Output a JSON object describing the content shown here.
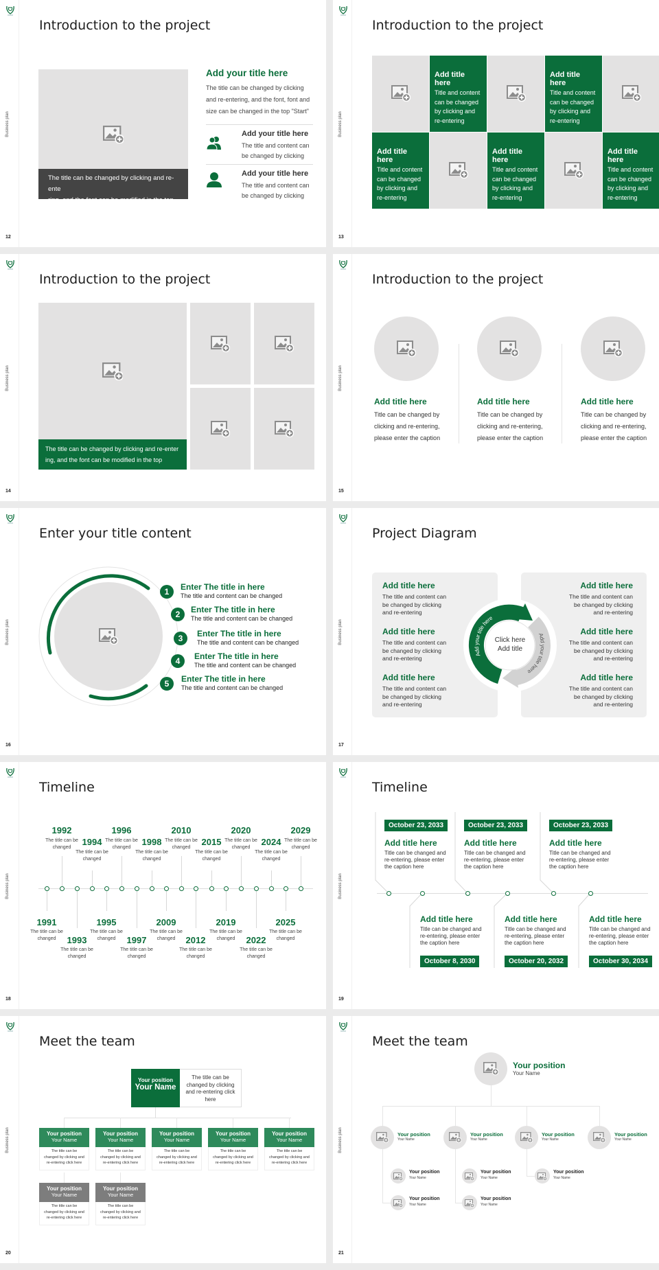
{
  "sidebar_label": "Business plan",
  "colors": {
    "accent": "#0b6e3b",
    "accent_light": "#2e8a5b",
    "placeholder": "#e3e2e2",
    "dark_caption": "#444444",
    "muted_header": "#7d7d7d"
  },
  "slides": [
    {
      "page": "12",
      "title": "Introduction to the project",
      "image_caption": "The title can be changed by clicking and re-ente\nring, and the font can be modified in the top",
      "heading": "Add your title here",
      "body": "The title can be changed by clicking and re-entering, and the font, font and size can be changed in the top \"Start\"",
      "items": [
        {
          "icon": "people-icon",
          "title": "Add your title here",
          "text": "The title and content can be changed by clicking"
        },
        {
          "icon": "person-icon",
          "title": "Add your title here",
          "text": "The title and content can be changed by clicking"
        }
      ]
    },
    {
      "page": "13",
      "title": "Introduction to the project",
      "cells": [
        {
          "title": "Add title here",
          "text": "Title and content can be changed by clicking and re-entering"
        },
        {
          "title": "Add title here",
          "text": "Title and content can be changed by clicking and re-entering"
        },
        {
          "title": "Add title here",
          "text": "Title and content can be changed by clicking and re-entering"
        },
        {
          "title": "Add title here",
          "text": "Title and content can be changed by clicking and re-entering"
        },
        {
          "title": "Add title here",
          "text": "Title and content can be changed by clicking and re-entering"
        }
      ]
    },
    {
      "page": "14",
      "title": "Introduction to the project",
      "caption": "The title can be changed by clicking and re-enter\ning, and the font can be modified in the top"
    },
    {
      "page": "15",
      "title": "Introduction to the project",
      "columns": [
        {
          "title": "Add title here",
          "text": "Title can be changed by clicking and re-entering, please enter the caption"
        },
        {
          "title": "Add title here",
          "text": "Title can be changed by clicking and re-entering, please enter the caption"
        },
        {
          "title": "Add title here",
          "text": "Title can be changed by clicking and re-entering, please enter the caption"
        }
      ]
    },
    {
      "page": "16",
      "title": "Enter your title content",
      "items": [
        {
          "num": "1",
          "title": "Enter The title in here",
          "text": "The title and content can be changed"
        },
        {
          "num": "2",
          "title": "Enter The title in here",
          "text": "The title and content can be changed"
        },
        {
          "num": "3",
          "title": "Enter The title in here",
          "text": "The title and content can be changed"
        },
        {
          "num": "4",
          "title": "Enter The title in here",
          "text": "The title and content can be changed"
        },
        {
          "num": "5",
          "title": "Enter The title in here",
          "text": "The title and content can be changed"
        }
      ]
    },
    {
      "page": "17",
      "title": "Project Diagram",
      "center": "Click here\nAdd title",
      "arc_left": "Add your title here",
      "arc_right": "Add your title here",
      "left": [
        {
          "title": "Add title here",
          "text": "The title and content can be changed by clicking and re-entering"
        },
        {
          "title": "Add title here",
          "text": "The title and content can be changed by clicking and re-entering"
        },
        {
          "title": "Add title here",
          "text": "The title and content can be changed by clicking and re-entering"
        }
      ],
      "right": [
        {
          "title": "Add title here",
          "text": "The title and content can be changed by clicking and re-entering"
        },
        {
          "title": "Add title here",
          "text": "The title and content can be changed by clicking and re-entering"
        },
        {
          "title": "Add title here",
          "text": "The title and content can be changed by clicking and re-entering"
        }
      ]
    },
    {
      "page": "18",
      "title": "Timeline",
      "events": [
        {
          "year": "1991",
          "text": "The title can be changed"
        },
        {
          "year": "1992",
          "text": "The title can be changed"
        },
        {
          "year": "1993",
          "text": "The title can be changed"
        },
        {
          "year": "1994",
          "text": "The title can be changed"
        },
        {
          "year": "1995",
          "text": "The title can be changed"
        },
        {
          "year": "1996",
          "text": "The title can be changed"
        },
        {
          "year": "1997",
          "text": "The title can be changed"
        },
        {
          "year": "1998",
          "text": "The title can be changed"
        },
        {
          "year": "2009",
          "text": "The title can be changed"
        },
        {
          "year": "2010",
          "text": "The title can be changed"
        },
        {
          "year": "2012",
          "text": "The title can be changed"
        },
        {
          "year": "2015",
          "text": "The title can be changed"
        },
        {
          "year": "2019",
          "text": "The title can be changed"
        },
        {
          "year": "2020",
          "text": "The title can be changed"
        },
        {
          "year": "2022",
          "text": "The title can be changed"
        },
        {
          "year": "2024",
          "text": "The title can be changed"
        },
        {
          "year": "2025",
          "text": "The title can be changed"
        },
        {
          "year": "2029",
          "text": "The title can be changed"
        }
      ]
    },
    {
      "page": "19",
      "title": "Timeline",
      "events": [
        {
          "date": "October 23, 2033",
          "title": "Add title here",
          "text": "Title can be changed and re-entering, please enter the caption here"
        },
        {
          "date": "October 8, 2030",
          "title": "Add title here",
          "text": "Title can be changed and re-entering, please enter the caption here"
        },
        {
          "date": "October 23, 2033",
          "title": "Add title here",
          "text": "Title can be changed and re-entering, please enter the caption here"
        },
        {
          "date": "October 20, 2032",
          "title": "Add title here",
          "text": "Title can be changed and re-entering, please enter the caption here"
        },
        {
          "date": "October 23, 2033",
          "title": "Add title here",
          "text": "Title can be changed and re-entering, please enter the caption here"
        },
        {
          "date": "October 30, 2034",
          "title": "Add title here",
          "text": "Title can be changed and re-entering, please enter the caption here"
        }
      ]
    },
    {
      "page": "20",
      "title": "Meet the team",
      "top": {
        "position": "Your position",
        "name": "Your Name",
        "text": "The title can be changed by clicking and re-entering click here"
      },
      "members": [
        {
          "position": "Your position",
          "name": "Your Name",
          "text": "The title can be changed by clicking and re-entering click here"
        },
        {
          "position": "Your position",
          "name": "Your Name",
          "text": "The title can be changed by clicking and re-entering click here"
        },
        {
          "position": "Your position",
          "name": "Your Name",
          "text": "The title can be changed by clicking and re-entering click here"
        },
        {
          "position": "Your position",
          "name": "Your Name",
          "text": "The title can be changed by clicking and re-entering click here"
        },
        {
          "position": "Your position",
          "name": "Your Name",
          "text": "The title can be changed by clicking and re-entering click here"
        }
      ],
      "sub": [
        {
          "position": "Your position",
          "name": "Your Name",
          "text": "The title can be changed by clicking and re-entering click here"
        },
        {
          "position": "Your position",
          "name": "Your Name",
          "text": "The title can be changed by clicking and re-entering click here"
        }
      ]
    },
    {
      "page": "21",
      "title": "Meet the team",
      "top": {
        "position": "Your position",
        "name": "Your Name"
      },
      "level2": [
        {
          "position": "Your position",
          "name": "Your Name"
        },
        {
          "position": "Your position",
          "name": "Your Name"
        },
        {
          "position": "Your position",
          "name": "Your Name"
        },
        {
          "position": "Your position",
          "name": "Your Name"
        }
      ],
      "level3": [
        {
          "position": "Your position",
          "name": "Your Name"
        },
        {
          "position": "Your position",
          "name": "Your Name"
        },
        {
          "position": "Your position",
          "name": "Your Name"
        },
        {
          "position": "Your position",
          "name": "Your Name"
        },
        {
          "position": "Your position",
          "name": "Your Name"
        }
      ]
    }
  ]
}
